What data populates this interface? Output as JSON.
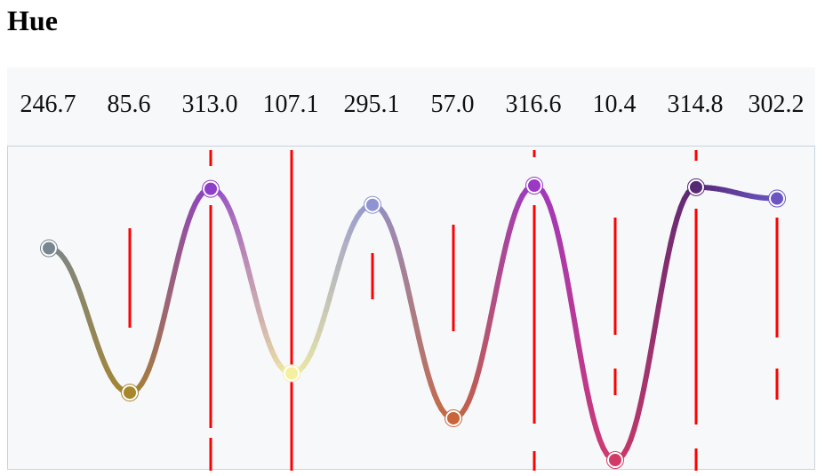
{
  "title": "Hue",
  "chart_data": {
    "type": "line",
    "title": "Hue",
    "values": [
      246.7,
      85.6,
      313.0,
      107.1,
      295.1,
      57.0,
      316.6,
      10.4,
      314.8,
      302.2
    ],
    "value_labels": [
      "246.7",
      "85.6",
      "313.0",
      "107.1",
      "295.1",
      "57.0",
      "316.6",
      "10.4",
      "314.8",
      "302.2"
    ],
    "point_colors": [
      "#78868f",
      "#a8862a",
      "#8e3fc8",
      "#f5f0a0",
      "#8f93d1",
      "#c8663a",
      "#9c38c6",
      "#d23a68",
      "#562875",
      "#6a55c2"
    ],
    "marker_color": "#ff0000",
    "grid": false
  }
}
